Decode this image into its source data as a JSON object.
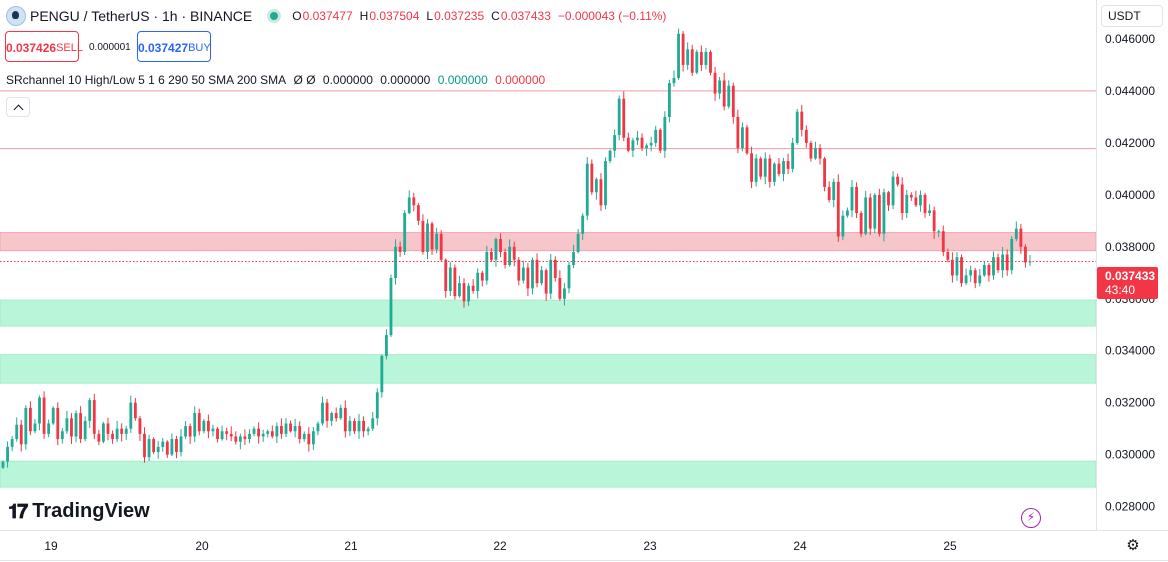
{
  "header": {
    "symbol": "PENGU / TetherUS · 1h · BINANCE",
    "ohlc": [
      {
        "k": "O",
        "v": "0.037477"
      },
      {
        "k": "H",
        "v": "0.037504"
      },
      {
        "k": "L",
        "v": "0.037235"
      },
      {
        "k": "C",
        "v": "0.037433"
      },
      {
        "k": "",
        "v": "−0.000043 (−0.11%)"
      }
    ]
  },
  "trade": {
    "sell_price": "0.037426",
    "sell_label": "SELL",
    "spread": "0.000001",
    "buy_price": "0.037427",
    "buy_label": "BUY"
  },
  "indicator": {
    "name": "SRchannel 10 High/Low 5 1 6 290 50 SMA 200 SMA",
    "symbols": "Ø  Ø",
    "v1": "0.000000",
    "v2": "0.000000",
    "v3": "0.000000",
    "v4": "0.000000"
  },
  "currency": "USDT",
  "last_price": {
    "price": "0.037433",
    "countdown": "43:40"
  },
  "logo_text": "TradingView",
  "colors": {
    "up": "#22ab94",
    "down": "#f23645",
    "resistance_fill": "#f7c6cb",
    "support_fill": "#b9f5d8",
    "line": "#f59aa3"
  },
  "chart_data": {
    "type": "candlestick",
    "interval": "1h",
    "x_ticks": [
      "19",
      "20",
      "21",
      "22",
      "23",
      "24",
      "25"
    ],
    "y_ticks": [
      "0.028000",
      "0.030000",
      "0.032000",
      "0.034000",
      "0.036000",
      "0.038000",
      "0.040000",
      "0.042000",
      "0.044000",
      "0.046000"
    ],
    "ylim": [
      0.0271,
      0.0475
    ],
    "last_price": 0.037433,
    "resistance_lines": [
      0.044,
      0.04178
    ],
    "resistance_zones": [
      [
        0.03785,
        0.03855
      ]
    ],
    "support_zones": [
      [
        0.03495,
        0.03595
      ],
      [
        0.03275,
        0.03385
      ],
      [
        0.02875,
        0.02975
      ]
    ],
    "closes": [
      0.02973,
      0.0303,
      0.0306,
      0.03115,
      0.0304,
      0.0318,
      0.0309,
      0.0312,
      0.0322,
      0.0308,
      0.0312,
      0.0318,
      0.0306,
      0.0309,
      0.0314,
      0.0307,
      0.0316,
      0.0306,
      0.0313,
      0.0321,
      0.0308,
      0.0305,
      0.0312,
      0.0308,
      0.0306,
      0.031,
      0.0308,
      0.031,
      0.032,
      0.0314,
      0.0308,
      0.0299,
      0.0306,
      0.0301,
      0.0303,
      0.0305,
      0.03,
      0.0306,
      0.0301,
      0.0307,
      0.0311,
      0.0307,
      0.0316,
      0.0309,
      0.0313,
      0.0309,
      0.031,
      0.0306,
      0.0309,
      0.0308,
      0.0307,
      0.0305,
      0.0307,
      0.0306,
      0.0308,
      0.031,
      0.0307,
      0.0308,
      0.0309,
      0.0307,
      0.0311,
      0.0308,
      0.0312,
      0.0309,
      0.0311,
      0.0306,
      0.0308,
      0.0304,
      0.0309,
      0.0312,
      0.032,
      0.0313,
      0.0316,
      0.0314,
      0.0318,
      0.0309,
      0.0313,
      0.0309,
      0.0313,
      0.0309,
      0.031,
      0.0314,
      0.0324,
      0.0338,
      0.0346,
      0.0368,
      0.038,
      0.0378,
      0.0393,
      0.0399,
      0.0396,
      0.039,
      0.0378,
      0.0389,
      0.0379,
      0.0385,
      0.0375,
      0.0363,
      0.0372,
      0.0361,
      0.0366,
      0.0359,
      0.0365,
      0.0363,
      0.037,
      0.0367,
      0.0378,
      0.0375,
      0.0383,
      0.0378,
      0.0373,
      0.038,
      0.0375,
      0.0367,
      0.0372,
      0.0364,
      0.0375,
      0.0366,
      0.0371,
      0.0362,
      0.0375,
      0.0368,
      0.036,
      0.0364,
      0.0373,
      0.0378,
      0.0385,
      0.0392,
      0.0412,
      0.0401,
      0.0406,
      0.0396,
      0.0413,
      0.0417,
      0.0423,
      0.0437,
      0.0422,
      0.0417,
      0.0421,
      0.0422,
      0.0418,
      0.0419,
      0.042,
      0.0425,
      0.0417,
      0.043,
      0.0443,
      0.0445,
      0.0462,
      0.045,
      0.0456,
      0.0447,
      0.0455,
      0.045,
      0.0455,
      0.0447,
      0.0439,
      0.0444,
      0.0434,
      0.0442,
      0.043,
      0.0418,
      0.0426,
      0.0416,
      0.0405,
      0.0414,
      0.0407,
      0.0414,
      0.0405,
      0.0412,
      0.0408,
      0.0413,
      0.041,
      0.042,
      0.0432,
      0.0425,
      0.042,
      0.0414,
      0.0418,
      0.0414,
      0.0403,
      0.0398,
      0.0405,
      0.0384,
      0.0392,
      0.0394,
      0.0403,
      0.0393,
      0.0385,
      0.0399,
      0.0387,
      0.04,
      0.0385,
      0.0401,
      0.0396,
      0.0407,
      0.0404,
      0.0393,
      0.04,
      0.0399,
      0.0396,
      0.04,
      0.0393,
      0.0394,
      0.0386,
      0.0386,
      0.0378,
      0.0375,
      0.0369,
      0.0376,
      0.0366,
      0.0369,
      0.0371,
      0.0366,
      0.0369,
      0.0373,
      0.0369,
      0.0376,
      0.0371,
      0.0377,
      0.0371,
      0.0383,
      0.0387,
      0.038,
      0.0374,
      0.037433
    ]
  }
}
